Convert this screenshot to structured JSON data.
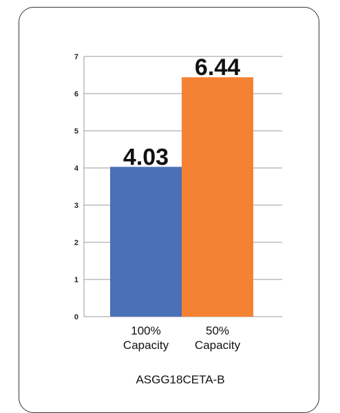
{
  "chart_data": {
    "type": "bar",
    "categories": [
      [
        "100%",
        "Capacity"
      ],
      [
        "50%",
        "Capacity"
      ]
    ],
    "values": [
      4.03,
      6.44
    ],
    "data_labels": [
      "4.03",
      "6.44"
    ],
    "colors": [
      "#4a70b8",
      "#f58232"
    ],
    "ylim": [
      0,
      7
    ],
    "yticks": [
      "0",
      "1",
      "2",
      "3",
      "4",
      "5",
      "6",
      "7"
    ],
    "grid": true,
    "title": "",
    "xlabel": "ASGG18CETA-B",
    "ylabel": ""
  }
}
